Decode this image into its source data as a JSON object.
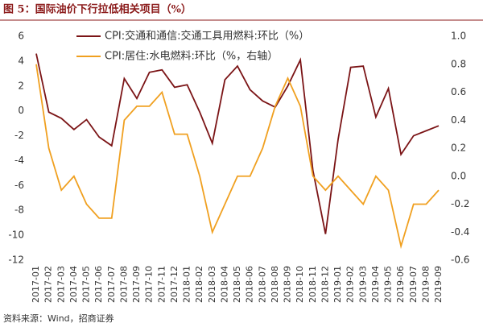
{
  "chart_data": {
    "type": "line",
    "title": "图 5：国际油价下行拉低相关项目（%）",
    "source": "资料来源：Wind，招商证券",
    "categories": [
      "2017-01",
      "2017-02",
      "2017-03",
      "2017-04",
      "2017-05",
      "2017-06",
      "2017-07",
      "2017-08",
      "2017-09",
      "2017-10",
      "2017-11",
      "2017-12",
      "2018-01",
      "2018-02",
      "2018-03",
      "2018-04",
      "2018-05",
      "2018-06",
      "2018-07",
      "2018-08",
      "2018-09",
      "2018-10",
      "2018-11",
      "2018-12",
      "2019-01",
      "2019-02",
      "2019-03",
      "2019-04",
      "2019-05",
      "2019-06",
      "2019-07",
      "2019-08",
      "2019-09"
    ],
    "series": [
      {
        "name": "CPI:交通和通信:交通工具用燃料:环比（%）",
        "color": "#7b1416",
        "axis": "y",
        "values": [
          4.6,
          -0.1,
          -0.6,
          -1.5,
          -0.7,
          -2.1,
          -2.8,
          2.6,
          1.0,
          3.1,
          3.3,
          1.9,
          2.1,
          -0.1,
          -2.6,
          2.5,
          3.6,
          1.7,
          0.8,
          0.3,
          2.0,
          4.1,
          -4.8,
          -9.9,
          -2.3,
          3.5,
          3.6,
          -0.5,
          1.8,
          -3.5,
          -2.0,
          -1.6,
          -1.2
        ]
      },
      {
        "name": "CPI:居住:水电燃料:环比（%，右轴）",
        "color": "#f0a020",
        "axis": "y2",
        "values": [
          0.8,
          0.2,
          -0.1,
          0.0,
          -0.2,
          -0.3,
          -0.3,
          0.4,
          0.5,
          0.5,
          0.6,
          0.3,
          0.3,
          0.0,
          -0.4,
          -0.2,
          0.0,
          0.0,
          0.2,
          0.5,
          0.7,
          0.5,
          0.0,
          -0.1,
          0.0,
          -0.1,
          -0.2,
          0.0,
          -0.1,
          -0.5,
          -0.2,
          -0.2,
          -0.1
        ]
      }
    ],
    "ylim": [
      -12,
      6
    ],
    "yticks": [
      -12,
      -10,
      -8,
      -6,
      -4,
      -2,
      0,
      2,
      4,
      6
    ],
    "y2lim": [
      -0.6,
      1.0
    ],
    "y2ticks": [
      -0.6,
      -0.4,
      -0.2,
      {
        "value": 0,
        "label": "0.0"
      },
      0.2,
      0.4,
      0.6,
      0.8,
      {
        "value": 1,
        "label": "1.0"
      }
    ],
    "grid": false
  }
}
